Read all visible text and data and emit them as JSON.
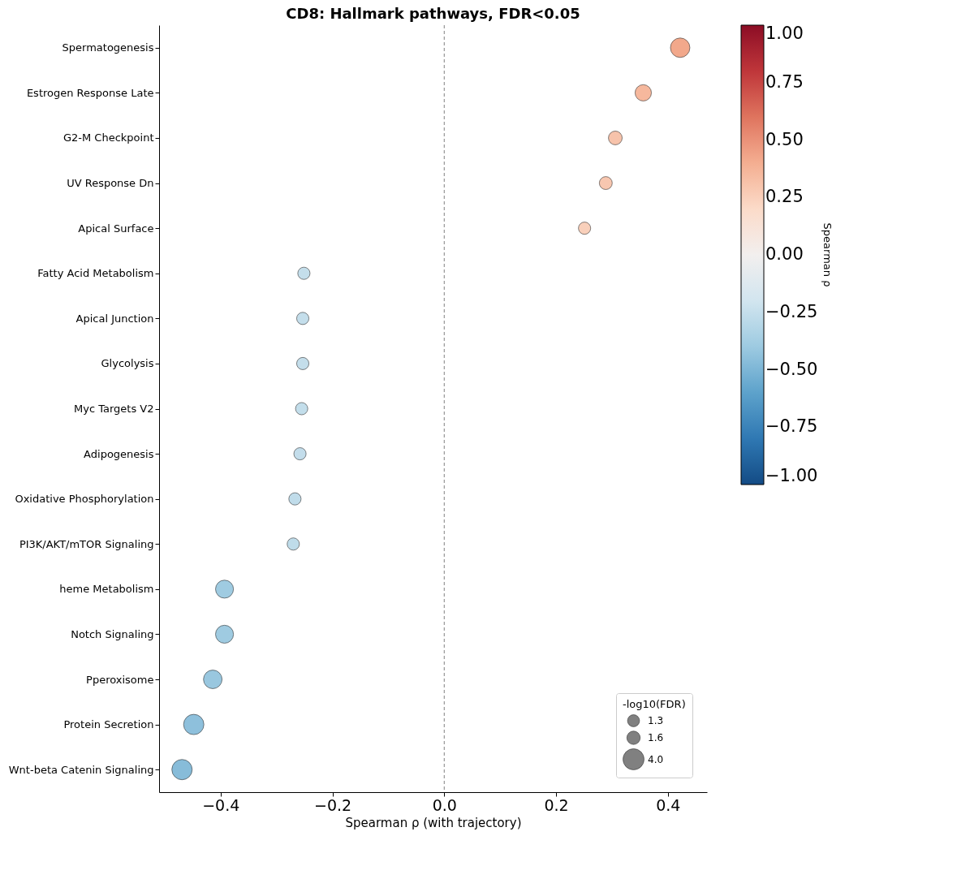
{
  "chart_data": {
    "type": "bubble",
    "title": "CD8: Hallmark pathways, FDR<0.05",
    "xlabel": "Spearman ρ (with trajectory)",
    "clabel": "Spearman ρ",
    "legend_title": "-log10(FDR)",
    "categories": [
      "Spermatogenesis",
      "Estrogen Response Late",
      "G2-M Checkpoint",
      "UV Response Dn",
      "Apical Surface",
      "Fatty Acid Metabolism",
      "Apical Junction",
      "Glycolysis",
      "Myc Targets V2",
      "Adipogenesis",
      "Oxidative Phosphorylation",
      "PI3K/AKT/mTOR  Signaling",
      "heme Metabolism",
      "Notch Signaling",
      "Pperoxisome",
      "Protein Secretion",
      "Wnt-beta Catenin Signaling"
    ],
    "values": [
      0.422,
      0.356,
      0.306,
      0.289,
      0.251,
      -0.251,
      -0.253,
      -0.253,
      -0.255,
      -0.258,
      -0.267,
      -0.27,
      -0.393,
      -0.393,
      -0.414,
      -0.448,
      -0.469
    ],
    "cvalues": [
      0.422,
      0.356,
      0.306,
      0.289,
      0.251,
      -0.251,
      -0.253,
      -0.253,
      -0.255,
      -0.258,
      -0.267,
      -0.27,
      -0.393,
      -0.393,
      -0.414,
      -0.448,
      -0.469
    ],
    "sizes": [
      3.4,
      2.4,
      1.7,
      1.5,
      1.35,
      1.35,
      1.35,
      1.35,
      1.35,
      1.35,
      1.35,
      1.35,
      2.9,
      2.9,
      3.1,
      3.7,
      3.7
    ],
    "size_legend": [
      1.3,
      1.6,
      {
        "value": 4,
        "label": "4.0"
      }
    ],
    "orientation": "horizontal",
    "xlim": [
      -0.51,
      0.47
    ],
    "xticks": [
      {
        "value": -0.4,
        "label": "−0.4"
      },
      {
        "value": -0.2,
        "label": "−0.2"
      },
      {
        "value": 0,
        "label": "0.0"
      },
      {
        "value": 0.2,
        "label": "0.2"
      },
      {
        "value": 0.4,
        "label": "0.4"
      }
    ],
    "clim": [
      -1,
      1
    ],
    "cticks": [
      {
        "value": -1,
        "label": "−1.00"
      },
      {
        "value": -0.75,
        "label": "−0.75"
      },
      {
        "value": -0.5,
        "label": "−0.50"
      },
      {
        "value": -0.25,
        "label": "−0.25"
      },
      {
        "value": 0,
        "label": "0.00"
      },
      {
        "value": 0.25,
        "label": "0.25"
      },
      {
        "value": 0.5,
        "label": "0.50"
      },
      {
        "value": 0.75,
        "label": "0.75"
      },
      {
        "value": 1,
        "label": "1.00"
      }
    ],
    "ref_lines": [
      {
        "axis": "x",
        "value": 0,
        "color": "#808080",
        "line_style": "dashed"
      }
    ],
    "grid": false
  }
}
